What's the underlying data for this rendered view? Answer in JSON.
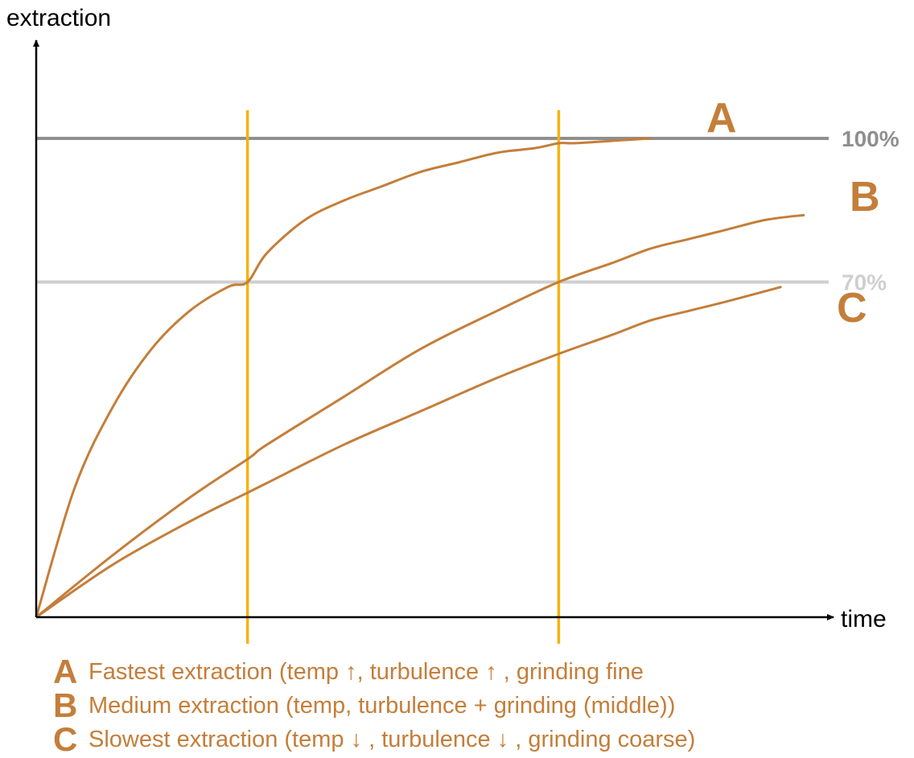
{
  "colors": {
    "curve": "#c47e3a",
    "marker": "#f5b20a",
    "ref_100": "#8f8f8f",
    "ref_70": "#cfcfcf",
    "axis": "#000000"
  },
  "chart_data": {
    "type": "line",
    "xlabel": "time",
    "ylabel": "extraction",
    "xlim": [
      0,
      1
    ],
    "ylim": [
      0,
      1
    ],
    "grid": false,
    "legend": "bottom",
    "reference_lines": [
      {
        "label": "100%",
        "y": 1.0
      },
      {
        "label": "70%",
        "y": 0.7
      }
    ],
    "vertical_markers": [
      0.275,
      0.68
    ],
    "series": [
      {
        "name": "A",
        "x": [
          0,
          0.05,
          0.1,
          0.15,
          0.2,
          0.25,
          0.275,
          0.3,
          0.35,
          0.4,
          0.45,
          0.5,
          0.55,
          0.6,
          0.65,
          0.68,
          0.7,
          0.75,
          0.8
        ],
        "y": [
          0,
          0.27,
          0.44,
          0.56,
          0.64,
          0.69,
          0.7,
          0.76,
          0.83,
          0.87,
          0.9,
          0.93,
          0.95,
          0.97,
          0.98,
          0.99,
          0.99,
          0.995,
          1.0
        ]
      },
      {
        "name": "B",
        "x": [
          0,
          0.1,
          0.2,
          0.275,
          0.3,
          0.4,
          0.5,
          0.6,
          0.68,
          0.75,
          0.8,
          0.85,
          0.9,
          0.95,
          1.0
        ],
        "y": [
          0,
          0.13,
          0.25,
          0.33,
          0.36,
          0.46,
          0.56,
          0.64,
          0.7,
          0.74,
          0.77,
          0.79,
          0.81,
          0.83,
          0.84
        ]
      },
      {
        "name": "C",
        "x": [
          0,
          0.1,
          0.2,
          0.275,
          0.3,
          0.4,
          0.5,
          0.6,
          0.68,
          0.75,
          0.8,
          0.85,
          0.9,
          0.97
        ],
        "y": [
          0,
          0.11,
          0.2,
          0.26,
          0.28,
          0.36,
          0.43,
          0.5,
          0.55,
          0.59,
          0.62,
          0.64,
          0.66,
          0.69
        ]
      }
    ],
    "legend_entries": [
      {
        "key": "A",
        "text": "Fastest extraction (temp ↑, turbulence ↑ , grinding fine"
      },
      {
        "key": "B",
        "text": "Medium extraction (temp, turbulence + grinding (middle))"
      },
      {
        "key": "C",
        "text": "Slowest extraction (temp ↓ , turbulence ↓ , grinding coarse)"
      }
    ]
  }
}
